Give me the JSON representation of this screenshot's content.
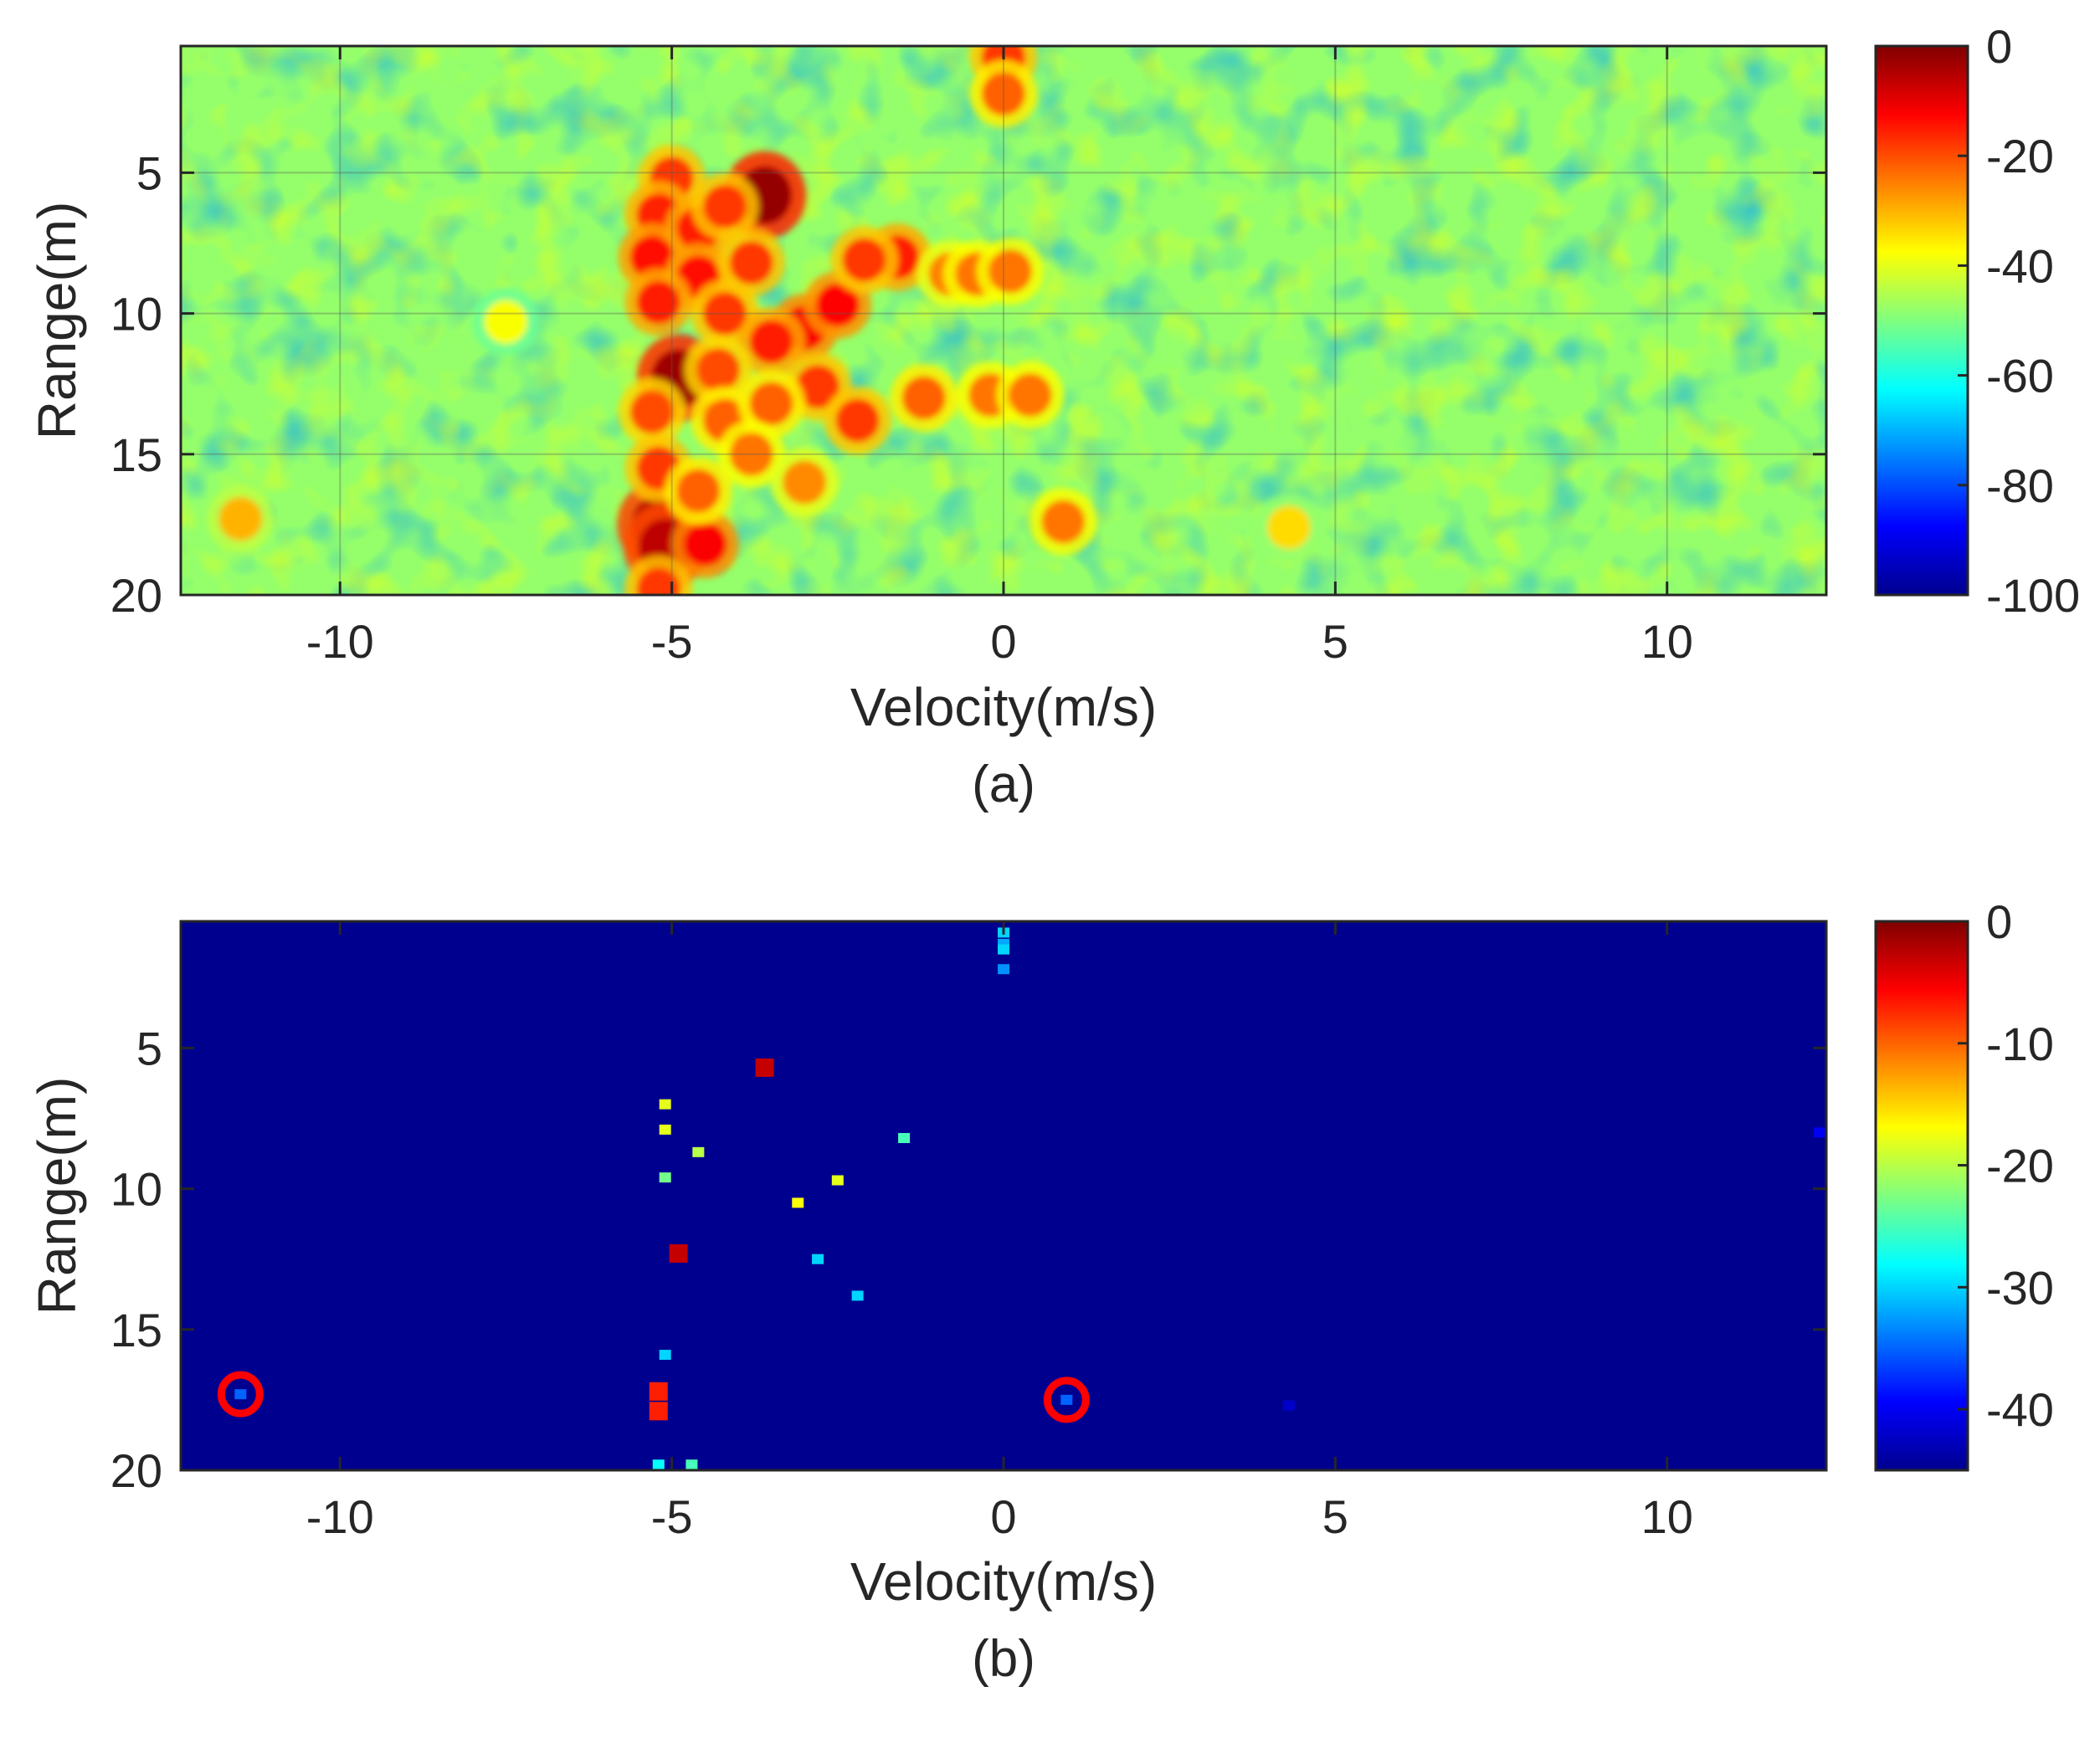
{
  "chart_data": [
    {
      "type": "heatmap",
      "panel_label": "(a)",
      "xlabel": "Velocity(m/s)",
      "ylabel": "Range(m)",
      "xlim": [
        -12.4,
        12.4
      ],
      "ylim": [
        20,
        0.5
      ],
      "y_axis_reversed": true,
      "xticks": [
        -10,
        -5,
        0,
        5,
        10
      ],
      "yticks": [
        5,
        10,
        15,
        20
      ],
      "grid": true,
      "colorbar": {
        "min": -100,
        "max": 0,
        "ticks": [
          0,
          -20,
          -40,
          -60,
          -80,
          -100
        ],
        "colormap": "jet"
      },
      "background_level_db": -48,
      "hotspots": [
        {
          "x": -3.6,
          "y": 5.8,
          "value": -2
        },
        {
          "x": -4.9,
          "y": 12.3,
          "value": -3
        },
        {
          "x": -5.2,
          "y": 17.5,
          "value": -5
        },
        {
          "x": -5.1,
          "y": 18.3,
          "value": -6
        },
        {
          "x": -4.5,
          "y": 18.2,
          "value": -12
        },
        {
          "x": -5.0,
          "y": 5.2,
          "value": -18
        },
        {
          "x": -5.2,
          "y": 6.5,
          "value": -16
        },
        {
          "x": -4.6,
          "y": 7.0,
          "value": -15
        },
        {
          "x": -4.2,
          "y": 6.2,
          "value": -18
        },
        {
          "x": -5.3,
          "y": 8.0,
          "value": -14
        },
        {
          "x": -4.6,
          "y": 8.7,
          "value": -14
        },
        {
          "x": -3.8,
          "y": 8.2,
          "value": -18
        },
        {
          "x": -5.2,
          "y": 9.6,
          "value": -15
        },
        {
          "x": -4.2,
          "y": 10.0,
          "value": -18
        },
        {
          "x": -3.0,
          "y": 10.5,
          "value": -12
        },
        {
          "x": -3.5,
          "y": 11.0,
          "value": -15
        },
        {
          "x": -2.5,
          "y": 9.7,
          "value": -13
        },
        {
          "x": -1.6,
          "y": 8.0,
          "value": -15
        },
        {
          "x": -2.1,
          "y": 8.1,
          "value": -18
        },
        {
          "x": -2.8,
          "y": 12.6,
          "value": -18
        },
        {
          "x": -4.3,
          "y": 12.0,
          "value": -20
        },
        {
          "x": -5.3,
          "y": 13.5,
          "value": -20
        },
        {
          "x": -4.2,
          "y": 13.8,
          "value": -22
        },
        {
          "x": -3.5,
          "y": 13.2,
          "value": -22
        },
        {
          "x": -2.2,
          "y": 13.8,
          "value": -18
        },
        {
          "x": -1.2,
          "y": 13.0,
          "value": -22
        },
        {
          "x": -0.8,
          "y": 8.6,
          "value": -25
        },
        {
          "x": -0.4,
          "y": 8.6,
          "value": -24
        },
        {
          "x": 0.1,
          "y": 8.5,
          "value": -24
        },
        {
          "x": -0.2,
          "y": 12.9,
          "value": -24
        },
        {
          "x": 0.4,
          "y": 12.9,
          "value": -24
        },
        {
          "x": -5.2,
          "y": 15.5,
          "value": -18
        },
        {
          "x": -4.6,
          "y": 16.3,
          "value": -22
        },
        {
          "x": -3.8,
          "y": 15.0,
          "value": -24
        },
        {
          "x": -3.0,
          "y": 16.0,
          "value": -26
        },
        {
          "x": -5.2,
          "y": 19.8,
          "value": -18
        },
        {
          "x": 0.0,
          "y": 0.9,
          "value": -18
        },
        {
          "x": 0.0,
          "y": 2.2,
          "value": -22
        },
        {
          "x": 0.9,
          "y": 17.4,
          "value": -24
        },
        {
          "x": -11.5,
          "y": 17.3,
          "value": -30
        },
        {
          "x": 4.3,
          "y": 17.6,
          "value": -34
        },
        {
          "x": -7.5,
          "y": 10.3,
          "value": -38
        }
      ]
    },
    {
      "type": "heatmap",
      "panel_label": "(b)",
      "xlabel": "Velocity(m/s)",
      "ylabel": "Range(m)",
      "xlim": [
        -12.4,
        12.4
      ],
      "ylim": [
        20,
        0.5
      ],
      "y_axis_reversed": true,
      "xticks": [
        -10,
        -5,
        0,
        5,
        10
      ],
      "yticks": [
        5,
        10,
        15,
        20
      ],
      "grid": false,
      "colorbar": {
        "min": -45,
        "max": 0,
        "ticks": [
          0,
          -10,
          -20,
          -30,
          -40
        ],
        "colormap": "jet"
      },
      "background_level_db": -45,
      "detections": [
        {
          "x": -3.6,
          "y": 5.7,
          "value": -3
        },
        {
          "x": -4.9,
          "y": 12.3,
          "value": -3
        },
        {
          "x": -5.2,
          "y": 17.2,
          "value": -7
        },
        {
          "x": -5.2,
          "y": 17.9,
          "value": -7
        },
        {
          "x": -5.1,
          "y": 7.0,
          "value": -18
        },
        {
          "x": -5.1,
          "y": 7.9,
          "value": -18
        },
        {
          "x": -4.6,
          "y": 8.7,
          "value": -20
        },
        {
          "x": -5.1,
          "y": 9.6,
          "value": -23
        },
        {
          "x": -3.1,
          "y": 10.5,
          "value": -17
        },
        {
          "x": -2.5,
          "y": 9.7,
          "value": -18
        },
        {
          "x": -1.5,
          "y": 8.2,
          "value": -25
        },
        {
          "x": -2.8,
          "y": 12.5,
          "value": -30
        },
        {
          "x": -2.2,
          "y": 13.8,
          "value": -30
        },
        {
          "x": -5.2,
          "y": 19.8,
          "value": -28
        },
        {
          "x": -4.7,
          "y": 19.8,
          "value": -25
        },
        {
          "x": -5.1,
          "y": 15.9,
          "value": -30
        },
        {
          "x": 0.0,
          "y": 0.9,
          "value": -30
        },
        {
          "x": 0.0,
          "y": 1.3,
          "value": -32
        },
        {
          "x": 0.0,
          "y": 1.5,
          "value": -30
        },
        {
          "x": 0.0,
          "y": 2.2,
          "value": -33
        },
        {
          "x": -11.5,
          "y": 17.3,
          "value": -35
        },
        {
          "x": 0.95,
          "y": 17.5,
          "value": -35
        },
        {
          "x": 4.3,
          "y": 17.7,
          "value": -42
        },
        {
          "x": 12.3,
          "y": 8.0,
          "value": -40
        }
      ],
      "circled_targets": [
        {
          "x": -11.5,
          "y": 17.3
        },
        {
          "x": 0.95,
          "y": 17.5
        }
      ]
    }
  ]
}
